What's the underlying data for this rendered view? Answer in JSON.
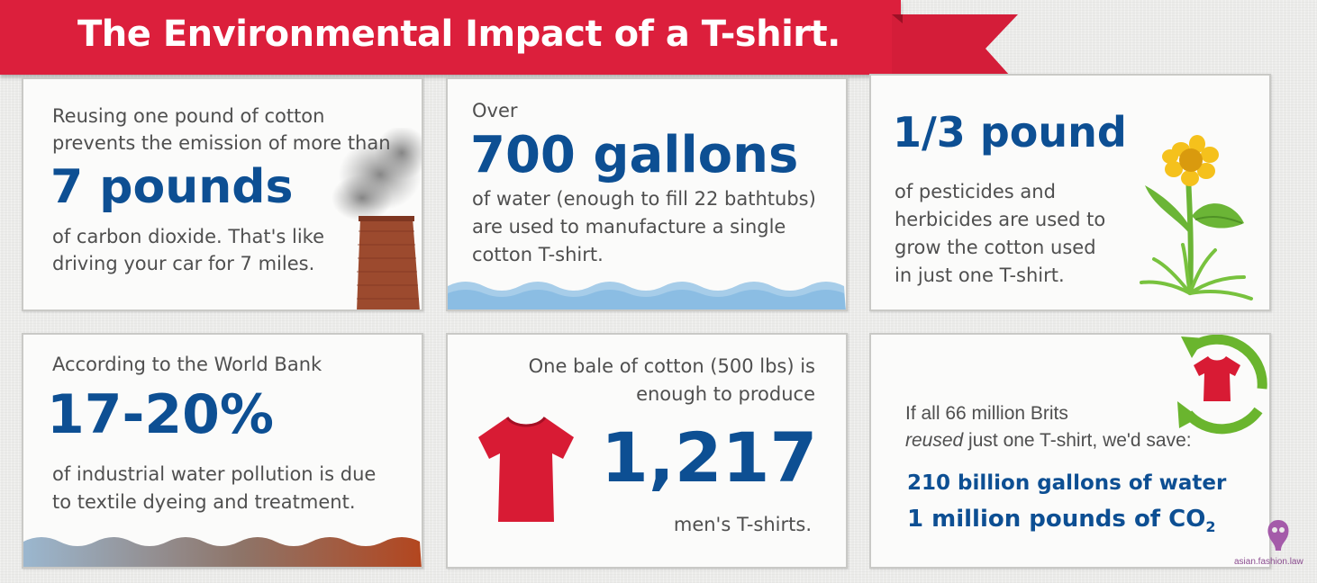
{
  "title": "The Environmental Impact of a T-shirt.",
  "colors": {
    "banner": "#dc1f3c",
    "headline_blue": "#0d4f93",
    "body_gray": "#4f4f4f",
    "tshirt_red": "#d81b34",
    "recycle_green": "#6ab52e"
  },
  "cards": {
    "carbon": {
      "intro1": "Reusing one pound of cotton",
      "intro2": "prevents the emission of more than",
      "headline": "7 pounds",
      "body1": "of carbon dioxide. That's like",
      "body2": "driving your car for 7 miles."
    },
    "water": {
      "intro": "Over",
      "headline": "700 gallons",
      "body1": "of water (enough to fill 22 bathtubs)",
      "body2": "are used to manufacture a single",
      "body3": "cotton T-shirt."
    },
    "pesticides": {
      "headline": "1/3 pound",
      "body1": "of pesticides and",
      "body2": "herbicides are used to",
      "body3": "grow the cotton used",
      "body4": "in just one T-shirt."
    },
    "pollution": {
      "intro": "According to the World Bank",
      "headline": "17-20%",
      "body1": "of industrial water pollution is due",
      "body2": "to textile dyeing and treatment."
    },
    "bale": {
      "intro1": "One bale of cotton (500 lbs) is",
      "intro2": "enough to produce",
      "headline": "1,217",
      "body": "men's T-shirts."
    },
    "brits": {
      "line1": "If all 66 million Brits",
      "line2_em": "reused",
      "line2_rest": " just one T-shirt, we'd save:",
      "stat1": "210 billion gallons of water",
      "stat2_main": "1 million pounds of CO",
      "stat2_sub": "2"
    }
  },
  "watermark": "asian.fashion.law"
}
